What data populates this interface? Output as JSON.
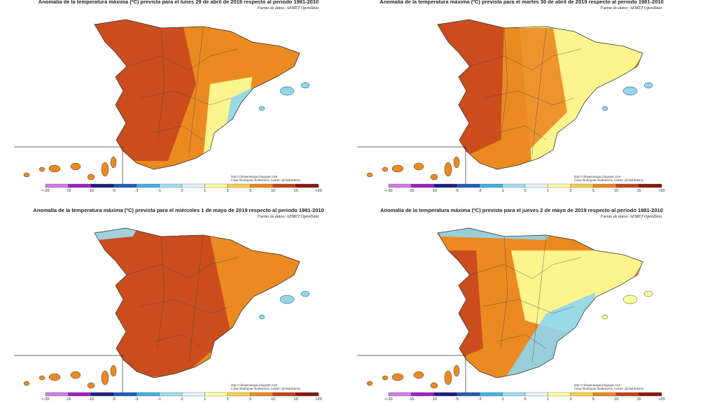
{
  "panels": [
    {
      "title": "Anomalía de la temperatura máxima (ºC) prevista para el lunes 29 de abril de 2019 respecto al periodo 1981-2010"
    },
    {
      "title": "Anomalía de la temperatura máxima (ºC) prevista para el martes 30 de abril de 2019 respecto al periodo 1981-2010"
    },
    {
      "title": "Anomalía de la temperatura máxima (ºC) prevista para el miércoles 1 de mayo de 2019 respecto al periodo 1981-2010"
    },
    {
      "title": "Anomalía de la temperatura máxima (ºC) prevista para el jueves 2 de mayo de 2019 respecto al periodo 1981-2010"
    }
  ],
  "source": "Fuente de datos: AEMET OpenData",
  "url": "http://climaenmapas.blogspot.com",
  "credit": "César Rodríguez Ballesteros, twitter: @cballesteros",
  "legend": [
    "<-20",
    "-15",
    "-10",
    "-5",
    "-3",
    "-1",
    "0",
    "1",
    "3",
    "5",
    "10",
    "15",
    ">20"
  ]
}
